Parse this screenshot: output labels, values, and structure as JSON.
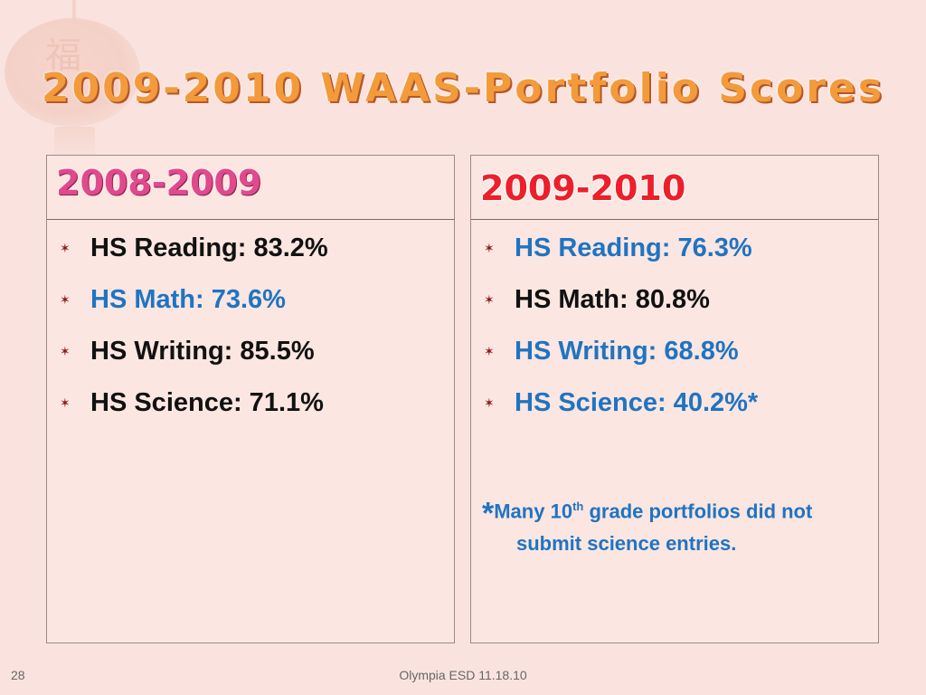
{
  "slide": {
    "title": "2009-2010 WAAS-Portfolio Scores",
    "footer": "Olympia ESD 11.18.10",
    "page_number": "28"
  },
  "left_panel": {
    "heading": "2008-2009",
    "items": [
      {
        "text": "HS Reading: 83.2%",
        "color": "black"
      },
      {
        "text": "HS Math: 73.6%",
        "color": "blue"
      },
      {
        "text": "HS Writing: 85.5%",
        "color": "black"
      },
      {
        "text": "HS Science: 71.1%",
        "color": "black"
      }
    ]
  },
  "right_panel": {
    "heading": "2009-2010",
    "items": [
      {
        "text": "HS Reading: 76.3%",
        "color": "blue"
      },
      {
        "text": "HS Math: 80.8%",
        "color": "black"
      },
      {
        "text": "HS Writing: 68.8%",
        "color": "blue"
      },
      {
        "text": "HS Science: 40.2%*",
        "color": "blue"
      }
    ],
    "note": {
      "star": "*",
      "part1": "Many 10",
      "sup": "th",
      "part2": " grade portfolios did not",
      "part3": "submit science entries."
    }
  },
  "colors": {
    "background": "#fae3de",
    "title": "#f39a3a",
    "left_heading": "#e04a8c",
    "right_heading": "#ec1f2b",
    "blue_text": "#1f74c2",
    "black_text": "#111111",
    "bullet": "#8b1a1a"
  },
  "icons": {
    "bullet": "star-bullet-icon",
    "decoration": "lantern-icon"
  }
}
